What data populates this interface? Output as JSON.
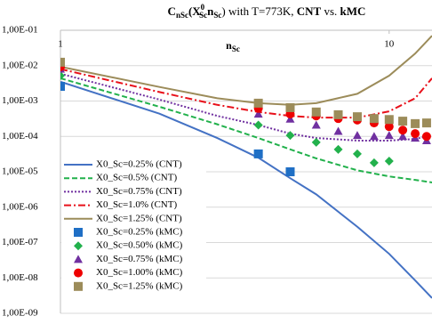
{
  "chart_data": {
    "type": "line",
    "title": [
      "C",
      "nSc",
      "(X",
      "0",
      "Sc",
      "n",
      "Sc",
      ") with T=773K, ",
      "CNT",
      " vs. ",
      "kMC"
    ],
    "x_label": [
      "n",
      "Sc"
    ],
    "xscale": "log",
    "yscale": "log",
    "xlim": [
      1,
      13.5
    ],
    "xticks": [
      1,
      10
    ],
    "ylim": [
      1e-09,
      0.1
    ],
    "yticks": [
      {
        "value": 1e-09,
        "label": "1,00E-09"
      },
      {
        "value": 1e-08,
        "label": "1,00E-08"
      },
      {
        "value": 1e-07,
        "label": "1,00E-07"
      },
      {
        "value": 1e-06,
        "label": "1,00E-06"
      },
      {
        "value": 1e-05,
        "label": "1,00E-05"
      },
      {
        "value": 0.0001,
        "label": "1,00E-04"
      },
      {
        "value": 0.001,
        "label": "1,00E-03"
      },
      {
        "value": 0.01,
        "label": "1,00E-02"
      },
      {
        "value": 0.1,
        "label": "1,00E-01"
      }
    ],
    "grid": true,
    "legend": "lower-left",
    "series": [
      {
        "name": "X0_Sc=0.25% (CNT)",
        "color": "#4472c4",
        "line_style": "solid",
        "x": [
          1,
          2,
          3,
          4,
          5,
          6,
          8,
          10,
          12,
          13.5
        ],
        "values": [
          0.0035,
          0.00044,
          9e-05,
          2.5e-05,
          6.6e-06,
          2.3e-06,
          2.8e-07,
          4.8e-08,
          8.5e-09,
          2.7e-09
        ]
      },
      {
        "name": "X0_Sc=0.5% (CNT)",
        "color": "#22b14c",
        "line_style": "dashed",
        "x": [
          1,
          2,
          3,
          4,
          5,
          6,
          8,
          10,
          12,
          13.5
        ],
        "values": [
          0.0044,
          0.00069,
          0.00022,
          9e-05,
          4.3e-05,
          2.4e-05,
          1.1e-05,
          7.4e-06,
          5.9e-06,
          5e-06
        ]
      },
      {
        "name": "X0_Sc=0.75% (CNT)",
        "color": "#7030a0",
        "line_style": "dotted",
        "x": [
          1,
          2,
          3,
          4,
          5,
          6,
          8,
          10,
          12,
          13.5
        ],
        "values": [
          0.0059,
          0.0011,
          0.00038,
          0.00021,
          0.00012,
          9e-05,
          7.6e-05,
          7.6e-05,
          8.5e-05,
          0.000107
        ]
      },
      {
        "name": "X0_Sc=1.0% (CNT)",
        "color": "#e8101a",
        "line_style": "dashdot",
        "x": [
          1,
          2,
          3,
          4,
          5,
          6,
          8,
          10,
          12,
          13.5
        ],
        "values": [
          0.008,
          0.0018,
          0.00078,
          0.00049,
          0.00038,
          0.00034,
          0.00034,
          0.00051,
          0.0012,
          0.0044
        ]
      },
      {
        "name": "X0_Sc=1.25% (CNT)",
        "color": "#9c8c5a",
        "line_style": "solid",
        "x": [
          1,
          2,
          3,
          4,
          5,
          6,
          8,
          10,
          12,
          13.5
        ],
        "values": [
          0.0093,
          0.0025,
          0.0012,
          0.00087,
          0.00078,
          0.00087,
          0.0016,
          0.0052,
          0.022,
          0.07
        ]
      },
      {
        "name": "X0_Sc=0.25% (kMC)",
        "color": "#1f6fc5",
        "marker": "square",
        "x": [
          1,
          4,
          5
        ],
        "values": [
          0.0026,
          3.2e-05,
          1e-05
        ]
      },
      {
        "name": "X0_Sc=0.50% (kMC)",
        "color": "#22b14c",
        "marker": "diamond",
        "x": [
          1,
          4,
          5,
          6,
          7,
          8,
          9,
          10
        ],
        "values": [
          0.0052,
          0.00021,
          0.000107,
          6.8e-05,
          4.3e-05,
          3.2e-05,
          1.8e-05,
          2e-05
        ]
      },
      {
        "name": "X0_Sc=0.75% (kMC)",
        "color": "#7030a0",
        "marker": "triangle",
        "x": [
          1,
          4,
          5,
          6,
          7,
          8,
          9,
          10,
          11,
          12,
          13
        ],
        "values": [
          0.008,
          0.00043,
          0.00031,
          0.00021,
          0.00014,
          0.000107,
          0.0001,
          0.000107,
          0.0001,
          9e-05,
          7.6e-05
        ]
      },
      {
        "name": "X0_Sc=1.00% (kMC)",
        "color": "#ee0000",
        "marker": "circle",
        "x": [
          1,
          4,
          5,
          6,
          7,
          8,
          9,
          10,
          11,
          12,
          13
        ],
        "values": [
          0.0093,
          0.00062,
          0.00043,
          0.00038,
          0.00032,
          0.00029,
          0.00024,
          0.00019,
          0.00015,
          0.00012,
          0.0001
        ]
      },
      {
        "name": "X0_Sc=1.25% (kMC)",
        "color": "#9c8c5a",
        "marker": "square",
        "x": [
          1,
          4,
          5,
          6,
          7,
          8,
          9,
          10,
          11,
          12,
          13
        ],
        "values": [
          0.0125,
          0.00087,
          0.00065,
          0.00049,
          0.00041,
          0.00036,
          0.00032,
          0.0003,
          0.00027,
          0.00023,
          0.00024
        ]
      }
    ]
  }
}
